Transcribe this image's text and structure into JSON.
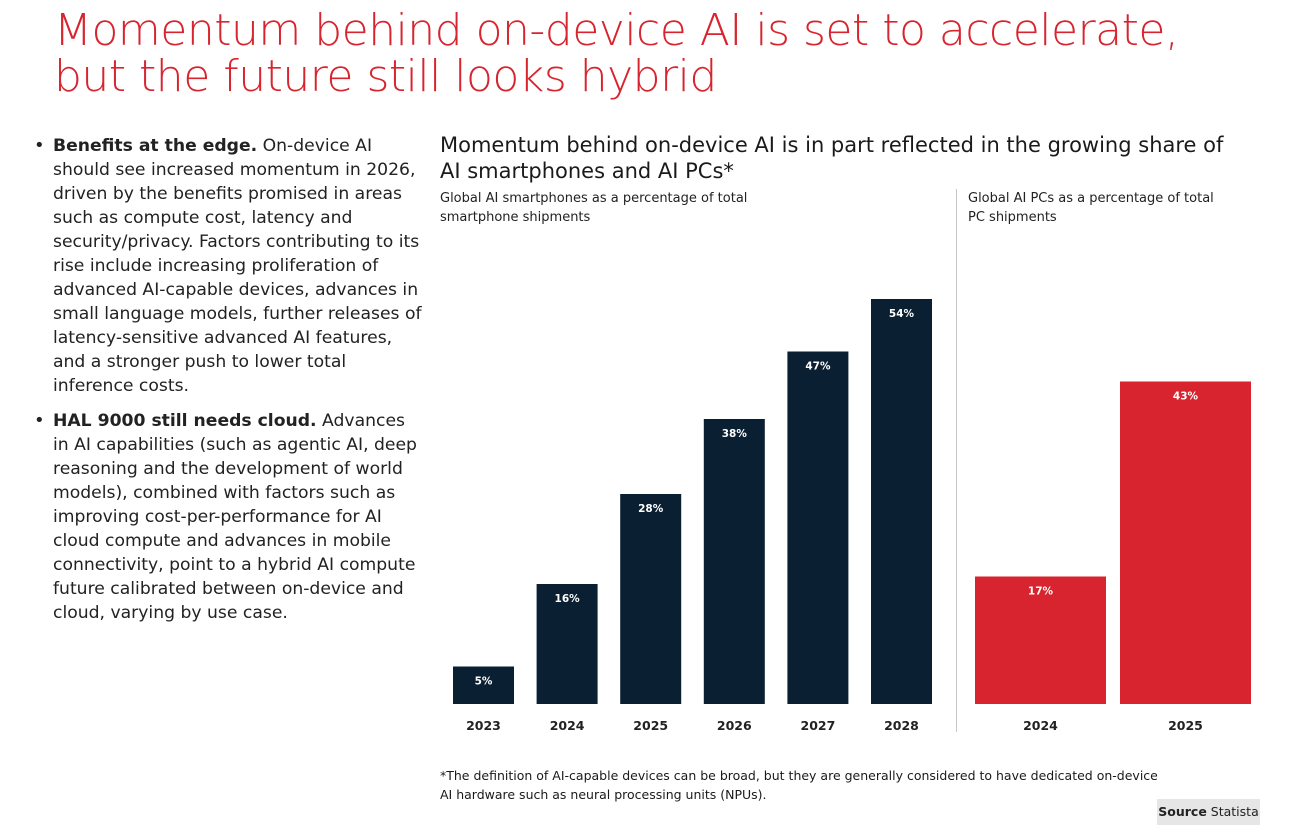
{
  "title": {
    "line1": "Momentum behind on-device AI is set to accelerate,",
    "line2": "but the future still looks hybrid"
  },
  "bullets": [
    {
      "heading": "Benefits at the edge.",
      "text": "On-device AI should see increased momentum in 2026, driven by the benefits promised in areas such as compute cost, latency and security/privacy. Factors contributing to its rise include increasing proliferation of advanced AI-capable devices, advances in small language models, further releases of latency-sensitive advanced AI features, and a stronger push to lower total inference costs."
    },
    {
      "heading": "HAL 9000 still needs cloud.",
      "text": "Advances in AI capabilities (such as agentic AI, deep reasoning and the development of world models), combined with factors such as improving cost-per-performance for AI cloud compute and advances in mobile connectivity, point to a hybrid AI compute future calibrated between on-device and cloud, varying by use case."
    }
  ],
  "chart_title": {
    "line1": "Momentum behind on-device AI is in part reflected in the growing share of",
    "line2": "AI smartphones and AI PCs*"
  },
  "footnote": {
    "line1": "*The definition of AI-capable devices can be broad, but they are generally considered to have dedicated on-device",
    "line2": "AI hardware such as neural processing units (NPUs)."
  },
  "source": {
    "label": "Source",
    "value": "Statista"
  },
  "colors": {
    "navy": "#0b1f33",
    "red": "#d7242e"
  },
  "chart_data": [
    {
      "type": "bar",
      "subtitle_line1": "Global AI smartphones as a percentage of total",
      "subtitle_line2": "smartphone shipments",
      "categories": [
        "2023",
        "2024",
        "2025",
        "2026",
        "2027",
        "2028"
      ],
      "values": [
        5,
        16,
        28,
        38,
        47,
        54
      ],
      "labels": [
        "5%",
        "16%",
        "28%",
        "38%",
        "47%",
        "54%"
      ],
      "unit": "%",
      "ylim": [
        0,
        60
      ],
      "color": "#0b1f33"
    },
    {
      "type": "bar",
      "subtitle_line1": "Global AI PCs as a percentage of total",
      "subtitle_line2": "PC shipments",
      "categories": [
        "2024",
        "2025"
      ],
      "values": [
        17,
        43
      ],
      "labels": [
        "17%",
        "43%"
      ],
      "unit": "%",
      "ylim": [
        0,
        60
      ],
      "color": "#d7242e"
    }
  ]
}
